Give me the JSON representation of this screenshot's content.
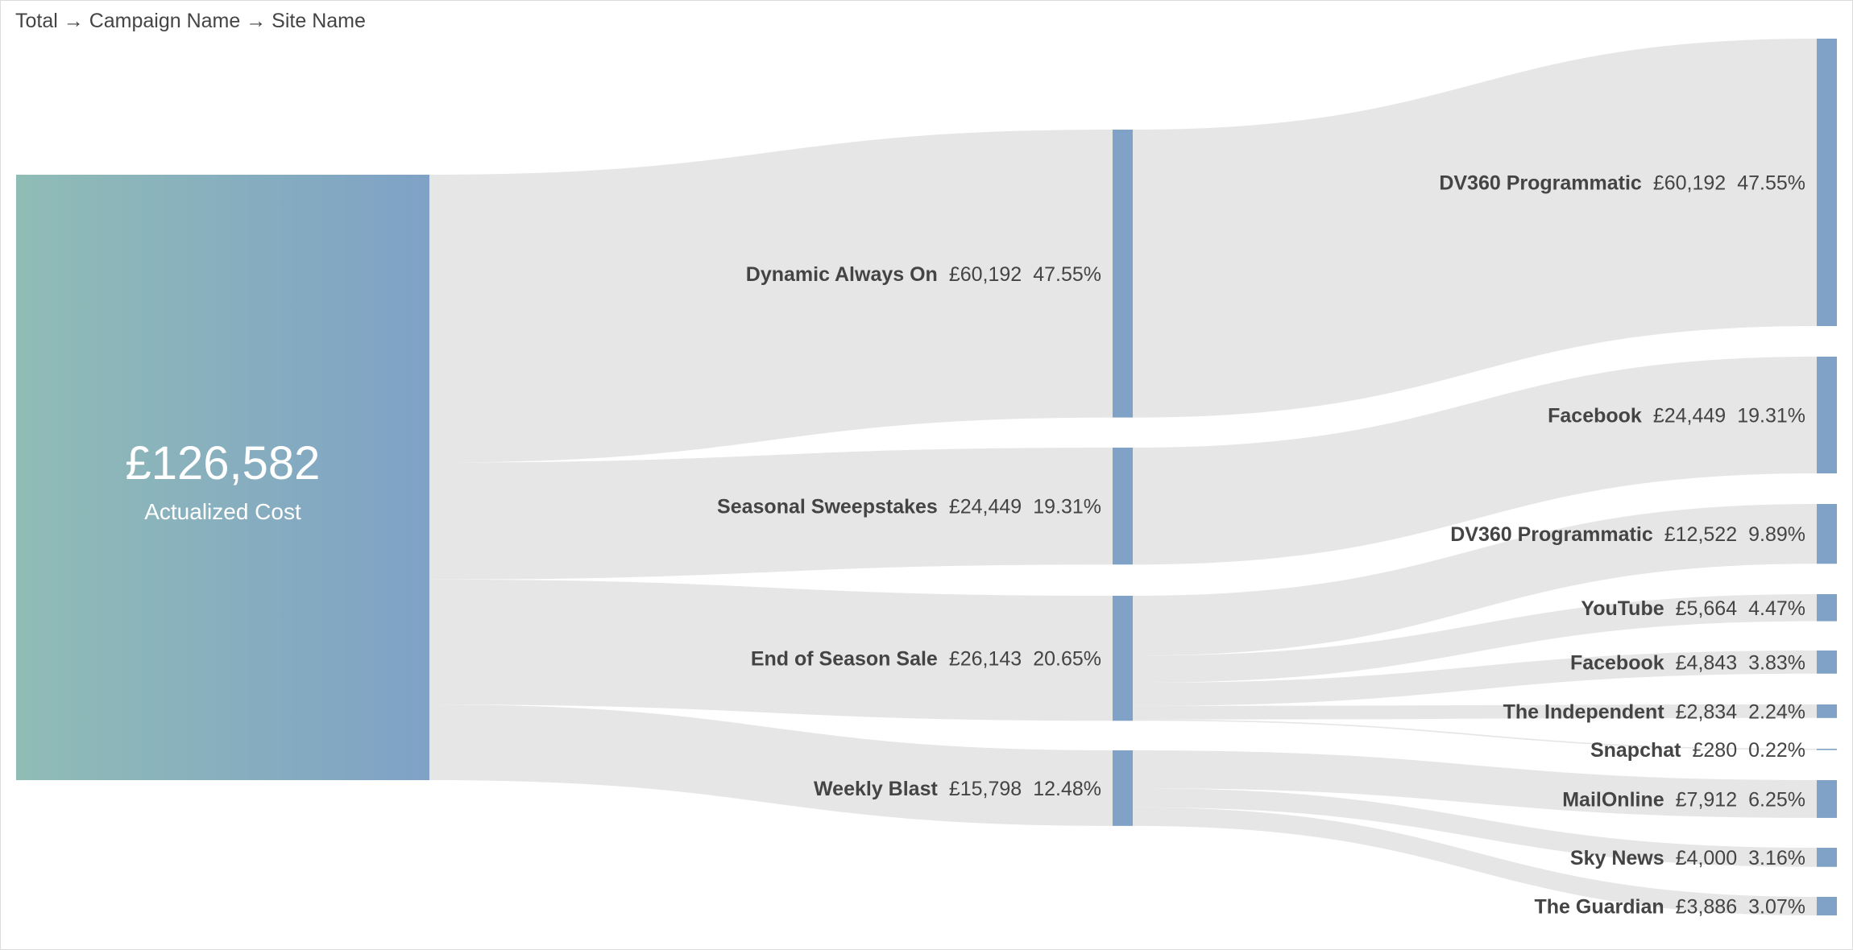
{
  "header": {
    "breadcrumb": "Total → Campaign Name → Site Name"
  },
  "colors": {
    "link": "#e6e6e6",
    "node": "#7fa2c6",
    "gradient_start": "#90bcb6",
    "gradient_end": "#7fa2c6",
    "total_text": "#ffffff"
  },
  "chart_data": {
    "type": "sankey",
    "total": {
      "value": 126582,
      "value_label": "£126,582",
      "label": "Actualized Cost"
    },
    "campaigns": [
      {
        "name": "Dynamic Always On",
        "value": 60192,
        "value_label": "£60,192",
        "pct": "47.55%"
      },
      {
        "name": "Seasonal Sweepstakes",
        "value": 24449,
        "value_label": "£24,449",
        "pct": "19.31%"
      },
      {
        "name": "End of Season Sale",
        "value": 26143,
        "value_label": "£26,143",
        "pct": "20.65%"
      },
      {
        "name": "Weekly Blast",
        "value": 15798,
        "value_label": "£15,798",
        "pct": "12.48%"
      }
    ],
    "sites": [
      {
        "name": "DV360 Programmatic",
        "value": 60192,
        "value_label": "£60,192",
        "pct": "47.55%"
      },
      {
        "name": "Facebook",
        "value": 24449,
        "value_label": "£24,449",
        "pct": "19.31%"
      },
      {
        "name": "DV360 Programmatic",
        "value": 12522,
        "value_label": "£12,522",
        "pct": "9.89%"
      },
      {
        "name": "YouTube",
        "value": 5664,
        "value_label": "£5,664",
        "pct": "4.47%"
      },
      {
        "name": "Facebook",
        "value": 4843,
        "value_label": "£4,843",
        "pct": "3.83%"
      },
      {
        "name": "The Independent",
        "value": 2834,
        "value_label": "£2,834",
        "pct": "2.24%"
      },
      {
        "name": "Snapchat",
        "value": 280,
        "value_label": "£280",
        "pct": "0.22%"
      },
      {
        "name": "MailOnline",
        "value": 7912,
        "value_label": "£7,912",
        "pct": "6.25%"
      },
      {
        "name": "Sky News",
        "value": 4000,
        "value_label": "£4,000",
        "pct": "3.16%"
      },
      {
        "name": "The Guardian",
        "value": 3886,
        "value_label": "£3,886",
        "pct": "3.07%"
      }
    ],
    "links": [
      {
        "campaign": 0,
        "site": 0,
        "value": 60192
      },
      {
        "campaign": 1,
        "site": 1,
        "value": 24449
      },
      {
        "campaign": 2,
        "site": 2,
        "value": 12522
      },
      {
        "campaign": 2,
        "site": 3,
        "value": 5664
      },
      {
        "campaign": 2,
        "site": 4,
        "value": 4843
      },
      {
        "campaign": 2,
        "site": 5,
        "value": 2834
      },
      {
        "campaign": 2,
        "site": 6,
        "value": 280
      },
      {
        "campaign": 3,
        "site": 7,
        "value": 7912
      },
      {
        "campaign": 3,
        "site": 8,
        "value": 4000
      },
      {
        "campaign": 3,
        "site": 9,
        "value": 3886
      }
    ]
  }
}
